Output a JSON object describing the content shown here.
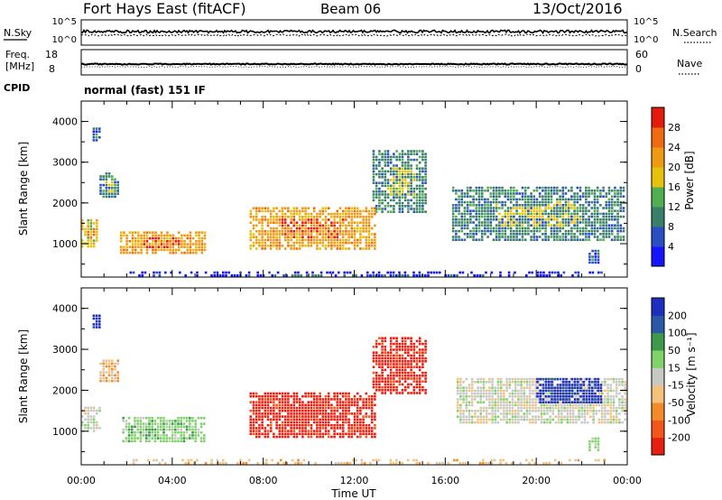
{
  "header": {
    "station": "Fort Hays East (fitACF)",
    "beam": "Beam 06",
    "date": "13/Oct/2016"
  },
  "noise_panel": {
    "left_label": "N.Sky",
    "right_label": "N.Search",
    "y_ticks": [
      "10^5",
      "10^0"
    ]
  },
  "freq_panel": {
    "left_label_1": "Freq.",
    "left_label_2": "[MHz]",
    "right_label": "Nave",
    "left_ticks": [
      "18",
      "8"
    ],
    "right_ticks": [
      "60",
      "0"
    ]
  },
  "cpid": {
    "label": "CPID",
    "value": "normal (fast) 151 IF"
  },
  "chart_data": [
    {
      "type": "heatmap",
      "name": "power",
      "ylabel": "Slant Range [km]",
      "y_ticks": [
        "4000",
        "3000",
        "2000",
        "1000"
      ],
      "ylim": [
        180,
        4500
      ],
      "colorbar_label": "Power [dB]",
      "colorbar_ticks": [
        "28",
        "24",
        "20",
        "16",
        "12",
        "8",
        "4"
      ],
      "colors": [
        "#1414ff",
        "#2a4ec4",
        "#3a7f6a",
        "#52ae52",
        "#e6c20a",
        "#ef9a14",
        "#f06a10",
        "#e41a0c"
      ],
      "regions": [
        {
          "t0": 0.0,
          "t1": 0.7,
          "r0": 900,
          "r1": 1600,
          "level": 4
        },
        {
          "t0": 0.5,
          "t1": 0.8,
          "r0": 3500,
          "r1": 3850,
          "level": 1
        },
        {
          "t0": 0.8,
          "t1": 1.6,
          "r0": 2150,
          "r1": 2750,
          "level": 2
        },
        {
          "t0": 1.7,
          "t1": 5.5,
          "r0": 750,
          "r1": 1300,
          "level": 5
        },
        {
          "t0": 7.4,
          "t1": 12.9,
          "r0": 900,
          "r1": 1900,
          "level": 5
        },
        {
          "t0": 12.8,
          "t1": 15.2,
          "r0": 1800,
          "r1": 3300,
          "level": 2
        },
        {
          "t0": 16.3,
          "t1": 23.9,
          "r0": 1100,
          "r1": 2400,
          "level": 2
        },
        {
          "t0": 22.3,
          "t1": 22.8,
          "r0": 550,
          "r1": 850,
          "level": 1
        },
        {
          "t0": 2.0,
          "t1": 23.0,
          "r0": 200,
          "r1": 320,
          "level": 0
        }
      ]
    },
    {
      "type": "heatmap",
      "name": "velocity",
      "ylabel": "Slant Range [km]",
      "y_ticks": [
        "4000",
        "3000",
        "2000",
        "1000"
      ],
      "ylim": [
        180,
        4500
      ],
      "colorbar_label": "Velocity [m s⁻¹]",
      "colorbar_ticks": [
        "200",
        "100",
        "50",
        "15",
        "-15",
        "-50",
        "-100",
        "-200"
      ],
      "colors": [
        "#e81f10",
        "#f3561a",
        "#f38c28",
        "#f4c27a",
        "#c9c9c4",
        "#7fd36a",
        "#3d9a4a",
        "#2a57a6",
        "#1e2fc0"
      ],
      "regions": [
        {
          "t0": 0.0,
          "t1": 0.8,
          "r0": 1000,
          "r1": 1600,
          "level": 4
        },
        {
          "t0": 0.5,
          "t1": 0.8,
          "r0": 3500,
          "r1": 3850,
          "level": 8
        },
        {
          "t0": 0.8,
          "t1": 1.6,
          "r0": 2200,
          "r1": 2750,
          "level": 3
        },
        {
          "t0": 1.8,
          "t1": 5.4,
          "r0": 750,
          "r1": 1350,
          "level": 5
        },
        {
          "t0": 7.4,
          "t1": 12.9,
          "r0": 850,
          "r1": 1950,
          "level": 0
        },
        {
          "t0": 12.8,
          "t1": 15.2,
          "r0": 1900,
          "r1": 3300,
          "level": 0
        },
        {
          "t0": 16.5,
          "t1": 23.9,
          "r0": 1200,
          "r1": 2300,
          "level": 4
        },
        {
          "t0": 20.0,
          "t1": 22.8,
          "r0": 1700,
          "r1": 2300,
          "level": 8
        },
        {
          "t0": 22.3,
          "t1": 22.8,
          "r0": 550,
          "r1": 850,
          "level": 5
        },
        {
          "t0": 2.0,
          "t1": 23.0,
          "r0": 200,
          "r1": 320,
          "level": 3
        }
      ]
    }
  ],
  "x_axis": {
    "label": "Time UT",
    "ticks": [
      "00:00",
      "04:00",
      "08:00",
      "12:00",
      "16:00",
      "20:00",
      "00:00"
    ],
    "range": [
      0,
      24
    ]
  }
}
